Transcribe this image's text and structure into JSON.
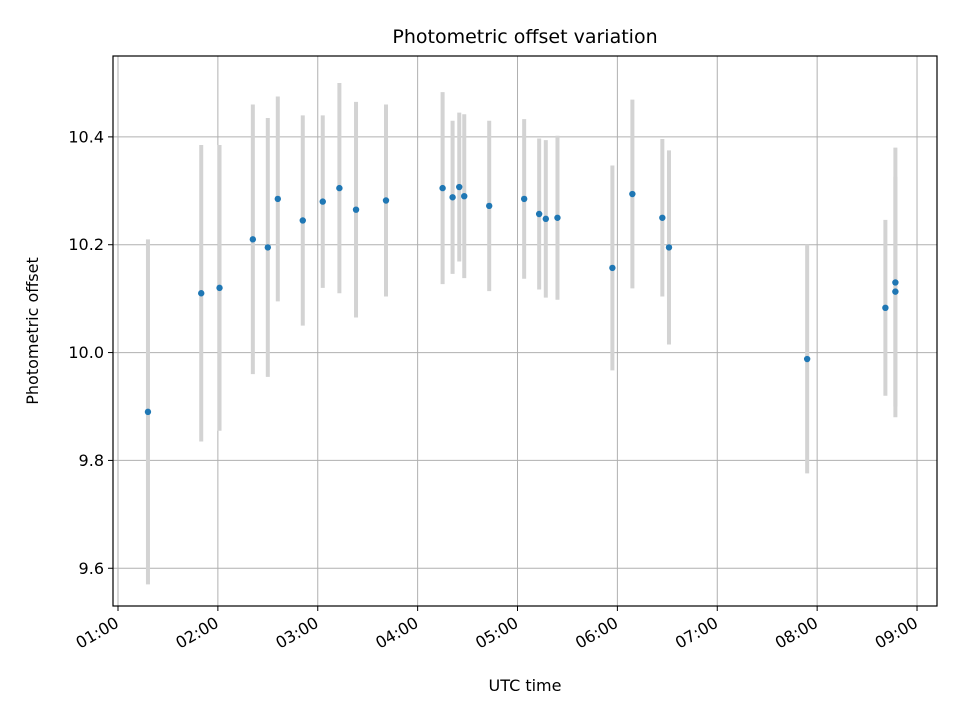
{
  "chart_data": {
    "type": "scatter",
    "title": "Photometric offset variation",
    "xlabel": "UTC time",
    "ylabel": "Photometric offset",
    "xlim": [
      "00:57",
      "09:12"
    ],
    "ylim": [
      9.53,
      10.55
    ],
    "xticks": [
      "01:00",
      "02:00",
      "03:00",
      "04:00",
      "05:00",
      "06:00",
      "07:00",
      "08:00",
      "09:00"
    ],
    "yticks": [
      "9.6",
      "9.8",
      "10.0",
      "10.2",
      "10.4"
    ],
    "grid": true,
    "colors": {
      "point": "#1f77b4",
      "errorbar": "#d3d3d3",
      "grid": "#b0b0b0"
    },
    "points": [
      {
        "x": "01:18",
        "y": 9.89,
        "err": 0.32
      },
      {
        "x": "01:50",
        "y": 10.11,
        "err": 0.275
      },
      {
        "x": "02:01",
        "y": 10.12,
        "err": 0.265
      },
      {
        "x": "02:21",
        "y": 10.21,
        "err": 0.25
      },
      {
        "x": "02:30",
        "y": 10.195,
        "err": 0.24
      },
      {
        "x": "02:36",
        "y": 10.285,
        "err": 0.19
      },
      {
        "x": "02:51",
        "y": 10.245,
        "err": 0.195
      },
      {
        "x": "03:03",
        "y": 10.28,
        "err": 0.16
      },
      {
        "x": "03:13",
        "y": 10.305,
        "err": 0.195
      },
      {
        "x": "03:23",
        "y": 10.265,
        "err": 0.2
      },
      {
        "x": "03:41",
        "y": 10.282,
        "err": 0.178
      },
      {
        "x": "04:15",
        "y": 10.305,
        "err": 0.178
      },
      {
        "x": "04:21",
        "y": 10.288,
        "err": 0.142
      },
      {
        "x": "04:25",
        "y": 10.307,
        "err": 0.138
      },
      {
        "x": "04:28",
        "y": 10.29,
        "err": 0.152
      },
      {
        "x": "04:43",
        "y": 10.272,
        "err": 0.158
      },
      {
        "x": "05:04",
        "y": 10.285,
        "err": 0.148
      },
      {
        "x": "05:13",
        "y": 10.257,
        "err": 0.14
      },
      {
        "x": "05:17",
        "y": 10.248,
        "err": 0.146
      },
      {
        "x": "05:24",
        "y": 10.25,
        "err": 0.152
      },
      {
        "x": "05:57",
        "y": 10.157,
        "err": 0.19
      },
      {
        "x": "06:09",
        "y": 10.294,
        "err": 0.175
      },
      {
        "x": "06:27",
        "y": 10.25,
        "err": 0.146
      },
      {
        "x": "06:31",
        "y": 10.195,
        "err": 0.18
      },
      {
        "x": "07:54",
        "y": 9.988,
        "err": 0.212
      },
      {
        "x": "08:41",
        "y": 10.083,
        "err": 0.163
      },
      {
        "x": "08:47",
        "y": 10.13,
        "err": 0.25
      },
      {
        "x": "08:47",
        "y": 10.113,
        "err": 0.213
      }
    ]
  }
}
